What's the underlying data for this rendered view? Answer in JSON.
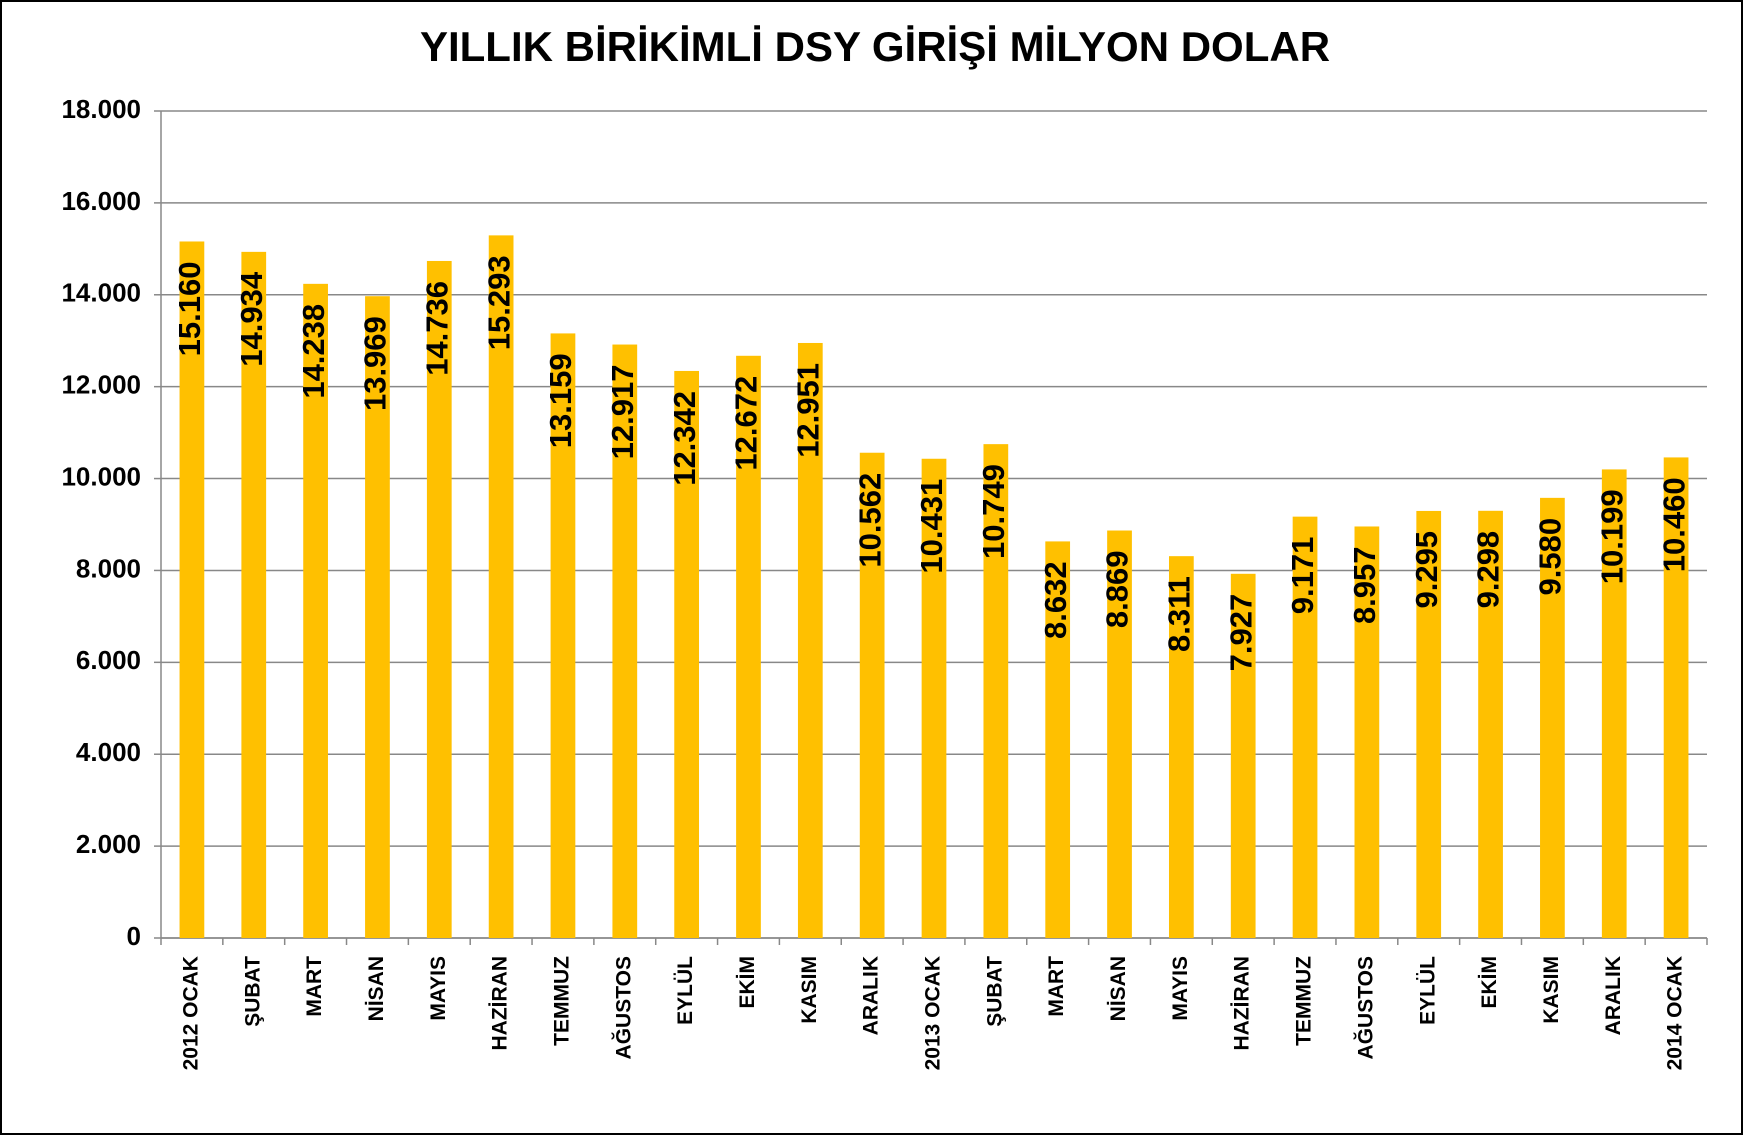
{
  "chart_data": {
    "type": "bar",
    "title": "YILLIK BİRİKİMLİ DSY GİRİŞİ MİLYON DOLAR",
    "categories": [
      "2012 OCAK",
      "ŞUBAT",
      "MART",
      "NİSAN",
      "MAYIS",
      "HAZİRAN",
      "TEMMUZ",
      "AĞUSTOS",
      "EYLÜL",
      "EKİM",
      "KASIM",
      "ARALIK",
      "2013 OCAK",
      "ŞUBAT",
      "MART",
      "NİSAN",
      "MAYIS",
      "HAZİRAN",
      "TEMMUZ",
      "AĞUSTOS",
      "EYLÜL",
      "EKİM",
      "KASIM",
      "ARALIK",
      "2014 OCAK"
    ],
    "values": [
      15160,
      14934,
      14238,
      13969,
      14736,
      15293,
      13159,
      12917,
      12342,
      12672,
      12951,
      10562,
      10431,
      10749,
      8632,
      8869,
      8311,
      7927,
      9171,
      8957,
      9295,
      9298,
      9580,
      10199,
      10460
    ],
    "value_labels": [
      "15.160",
      "14.934",
      "14.238",
      "13.969",
      "14.736",
      "15.293",
      "13.159",
      "12.917",
      "12.342",
      "12.672",
      "12.951",
      "10.562",
      "10.431",
      "10.749",
      "8.632",
      "8.869",
      "8.311",
      "7.927",
      "9.171",
      "8.957",
      "9.295",
      "9.298",
      "9.580",
      "10.199",
      "10.460"
    ],
    "color": "#ffc000",
    "ylim": [
      0,
      18000
    ],
    "yticks": [
      0,
      {
        "value": 2000,
        "label": "2.000"
      },
      {
        "value": 4000,
        "label": "4.000"
      },
      {
        "value": 6000,
        "label": "6.000"
      },
      {
        "value": 8000,
        "label": "8.000"
      },
      {
        "value": 10000,
        "label": "10.000"
      },
      {
        "value": 12000,
        "label": "12.000"
      },
      {
        "value": 14000,
        "label": "14.000"
      },
      {
        "value": 16000,
        "label": "16.000"
      },
      {
        "value": 18000,
        "label": "18.000"
      }
    ],
    "grid": true
  }
}
